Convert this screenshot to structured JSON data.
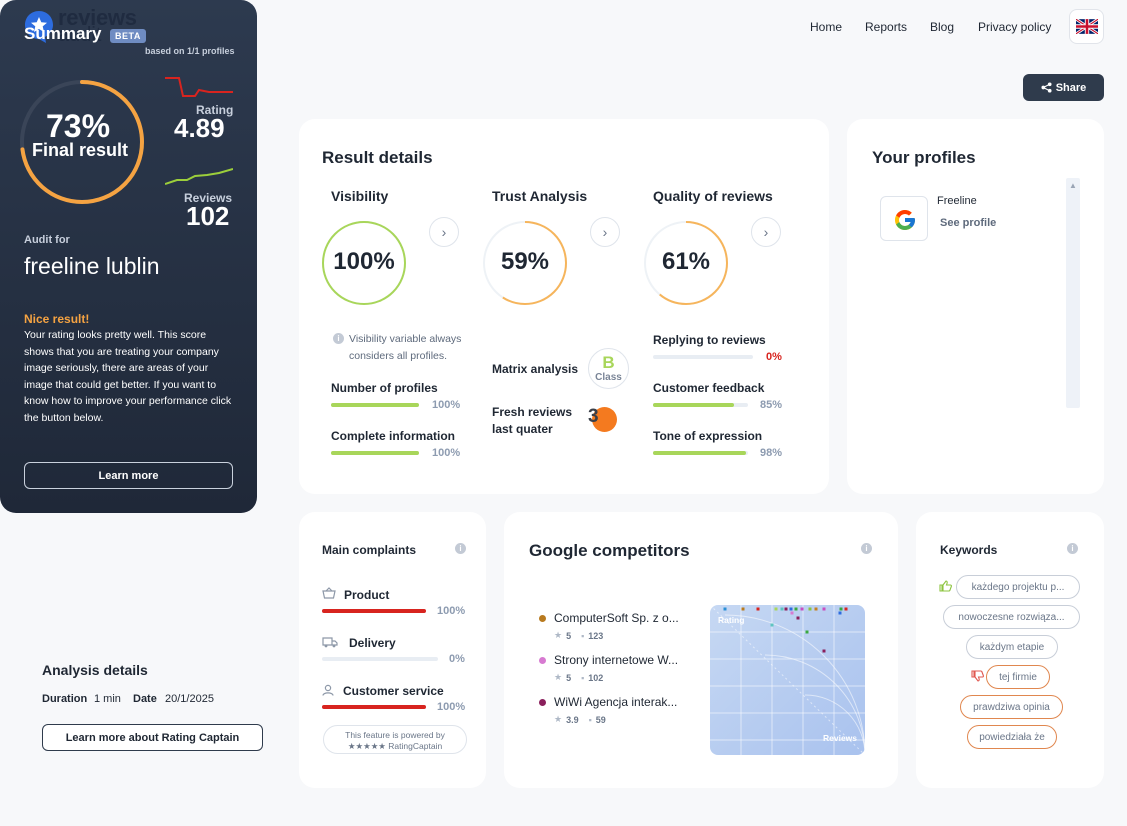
{
  "brand": {
    "line1": "reviews",
    "line2": "audit",
    "badge": "BETA"
  },
  "nav": {
    "items": [
      "Home",
      "Reports",
      "Blog",
      "Privacy policy"
    ],
    "language_icon": "uk-flag-icon"
  },
  "share": {
    "label": "Share",
    "icon": "share-icon"
  },
  "summary": {
    "title": "Summary",
    "based_on": "based on 1/1 profiles",
    "final_pct": "73%",
    "final_label": "Final result",
    "final_value": 0.73,
    "rating_label": "Rating",
    "rating_value": "4.89",
    "reviews_label": "Reviews",
    "reviews_value": "102",
    "audit_for": "Audit for",
    "company": "freeline lublin",
    "nice": "Nice result!",
    "description": "Your rating looks pretty well. This score shows that you are treating your company image seriously, there are areas of your image that could get better. If you want to know how to improve your performance click the button below.",
    "learn_more": "Learn more",
    "colors": {
      "ring": "#f5a342",
      "rating_line": "#d8241f",
      "reviews_line": "#9ccf3b"
    }
  },
  "analysis": {
    "title": "Analysis details",
    "duration_label": "Duration",
    "duration_value": "1 min",
    "date_label": "Date",
    "date_value": "20/1/2025",
    "button": "Learn more about Rating Captain"
  },
  "result": {
    "title": "Result details",
    "visibility": {
      "title": "Visibility",
      "value": "100%",
      "fraction": 1.0,
      "color": "#a8d65a",
      "note": "Visibility variable always considers all profiles.",
      "metrics": [
        {
          "label": "Number of profiles",
          "value": "100%",
          "fraction": 1.0,
          "color": "#a8d65a"
        },
        {
          "label": "Complete information",
          "value": "100%",
          "fraction": 1.0,
          "color": "#a8d65a"
        }
      ]
    },
    "trust": {
      "title": "Trust Analysis",
      "value": "59%",
      "fraction": 0.59,
      "color": "#f6b55c",
      "matrix_label": "Matrix analysis",
      "matrix_class": "B",
      "matrix_class_label": "Class",
      "fresh_label_1": "Fresh reviews",
      "fresh_label_2": "last quater",
      "fresh_value": "3"
    },
    "quality": {
      "title": "Quality of reviews",
      "value": "61%",
      "fraction": 0.61,
      "color": "#f6b55c",
      "metrics": [
        {
          "label": "Replying to reviews",
          "value": "0%",
          "fraction": 0.0,
          "color": "#d8241f"
        },
        {
          "label": "Customer feedback",
          "value": "85%",
          "fraction": 0.85,
          "color": "#a8d65a"
        },
        {
          "label": "Tone of expression",
          "value": "98%",
          "fraction": 0.98,
          "color": "#a8d65a"
        }
      ]
    }
  },
  "profiles": {
    "title": "Your profiles",
    "items": [
      {
        "name": "Freeline",
        "link": "See profile",
        "icon": "google-icon"
      }
    ]
  },
  "complaints": {
    "title": "Main complaints",
    "items": [
      {
        "label": "Product",
        "value": "100%",
        "fraction": 1.0,
        "icon": "basket-icon",
        "color": "#d8241f"
      },
      {
        "label": "Delivery",
        "value": "0%",
        "fraction": 0.0,
        "icon": "truck-icon",
        "color": "#d8241f"
      },
      {
        "label": "Customer service",
        "value": "100%",
        "fraction": 1.0,
        "icon": "user-icon",
        "color": "#d8241f"
      }
    ],
    "powered_1": "This feature is powered by",
    "powered_2": "RatingCaptain"
  },
  "competitors": {
    "title": "Google competitors",
    "items": [
      {
        "name": "ComputerSoft Sp. z o...",
        "rating": "5",
        "reviews": "123",
        "color": "#b87a1f"
      },
      {
        "name": "Strony internetowe W...",
        "rating": "5",
        "reviews": "102",
        "color": "#d77ad1"
      },
      {
        "name": "WiWi Agencja interak...",
        "rating": "3.9",
        "reviews": "59",
        "color": "#8a1f5c"
      }
    ],
    "chart_y_label": "Rating",
    "chart_x_label": "Reviews"
  },
  "keywords": {
    "title": "Keywords",
    "positive": [
      "każdego projektu p...",
      "nowoczesne rozwiąza...",
      "każdym etapie"
    ],
    "negative": [
      "tej firmie",
      "prawdziwa opinia",
      "powiedziała że"
    ]
  }
}
